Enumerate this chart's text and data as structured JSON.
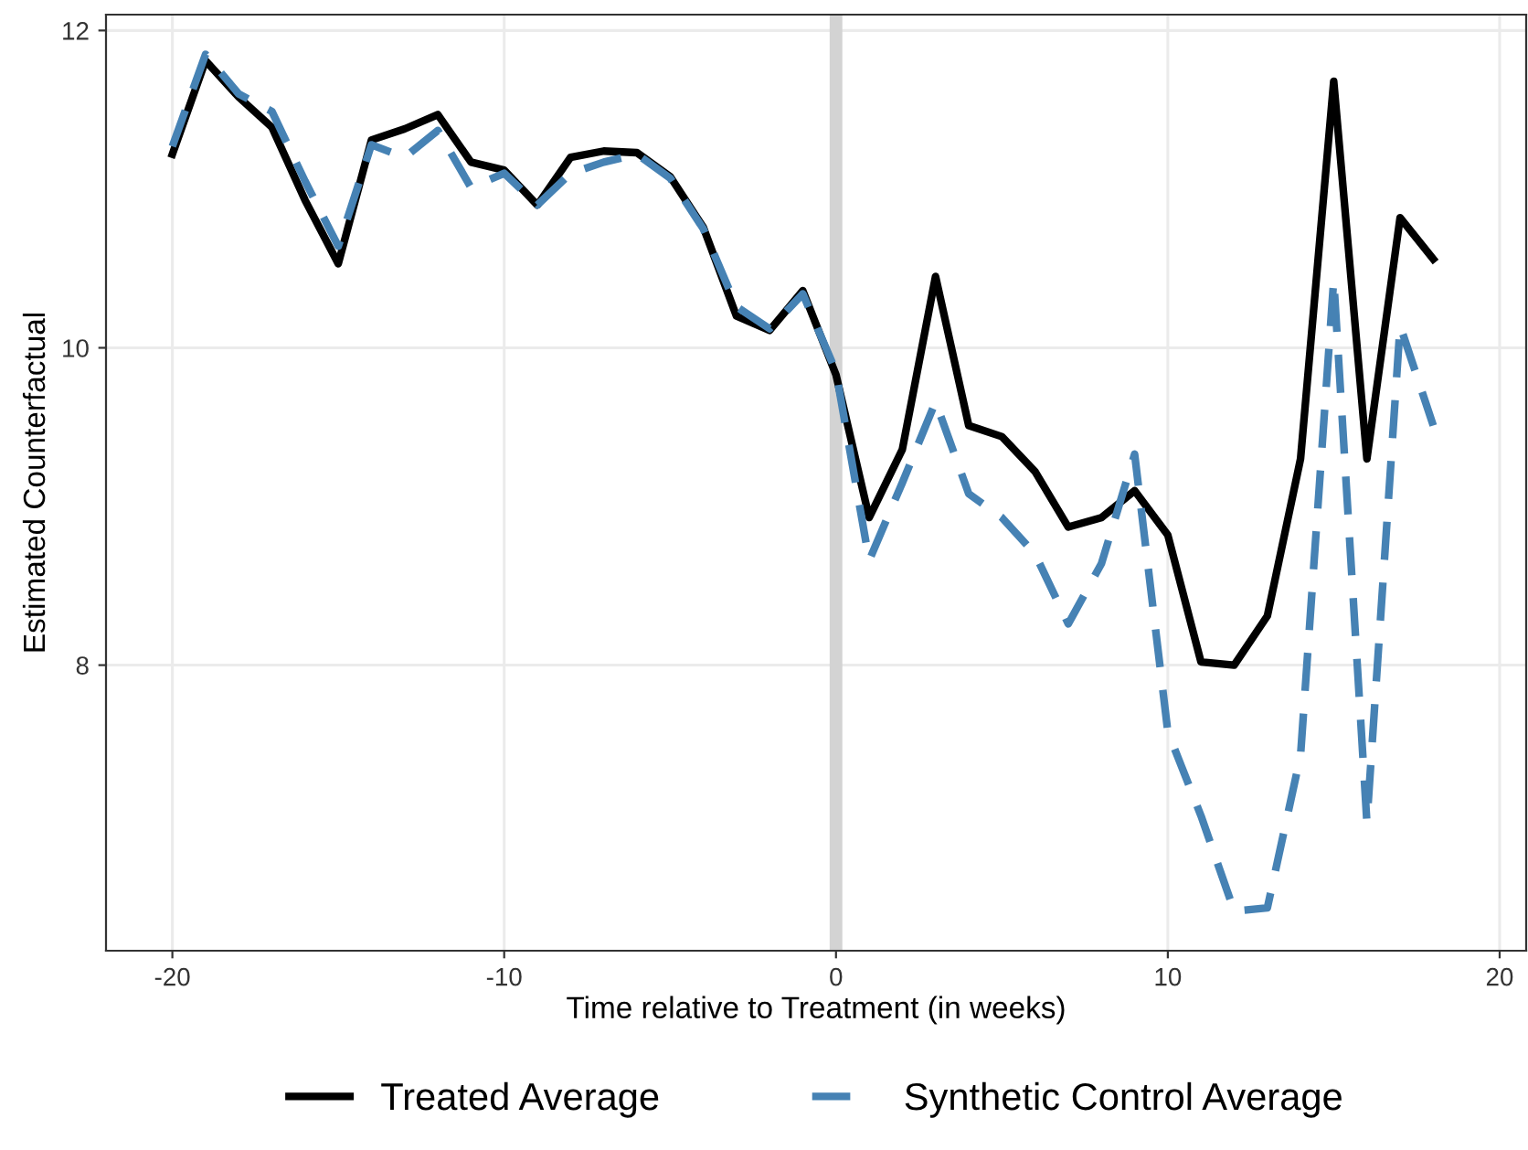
{
  "chart_data": {
    "type": "line",
    "xlabel": "Time relative to Treatment (in weeks)",
    "ylabel": "Estimated Counterfactual",
    "x": [
      -20,
      -19,
      -18,
      -17,
      -16,
      -15,
      -14,
      -13,
      -12,
      -11,
      -10,
      -9,
      -8,
      -7,
      -6,
      -5,
      -4,
      -3,
      -2,
      -1,
      0,
      1,
      2,
      3,
      4,
      5,
      6,
      7,
      8,
      9,
      10,
      11,
      12,
      13,
      14,
      15,
      16,
      17,
      18
    ],
    "series": [
      {
        "name": "Treated Average",
        "color": "#000000",
        "line_style": "solid",
        "values": [
          11.22,
          11.81,
          11.58,
          11.39,
          10.93,
          10.53,
          11.31,
          11.38,
          11.47,
          11.17,
          11.12,
          10.9,
          11.2,
          11.24,
          11.23,
          11.08,
          10.76,
          10.2,
          10.11,
          10.36,
          9.83,
          8.93,
          9.36,
          10.45,
          9.51,
          9.44,
          9.22,
          8.87,
          8.93,
          9.1,
          8.82,
          8.02,
          8.0,
          8.31,
          9.3,
          11.68,
          9.3,
          10.82,
          10.56
        ]
      },
      {
        "name": "Synthetic Control Average",
        "color": "#4682b4",
        "line_style": "dashed",
        "values": [
          11.27,
          11.85,
          11.6,
          11.49,
          11.05,
          10.64,
          11.28,
          11.2,
          11.37,
          11.01,
          11.1,
          10.9,
          11.1,
          11.17,
          11.22,
          11.07,
          10.75,
          10.26,
          10.12,
          10.34,
          9.85,
          8.66,
          9.15,
          9.66,
          9.08,
          8.93,
          8.7,
          8.26,
          8.64,
          9.33,
          7.58,
          7.05,
          6.45,
          6.47,
          7.43,
          10.43,
          7.01,
          10.14,
          9.51
        ]
      }
    ],
    "xlim": [
      -22,
      20.8
    ],
    "ylim": [
      6.2,
      12.1
    ],
    "xticks": [
      -20,
      -10,
      0,
      10,
      20
    ],
    "yticks": [
      8,
      10,
      12
    ],
    "ref_lines": [
      {
        "axis": "x",
        "value": 0,
        "color": "#d3d3d3"
      }
    ],
    "grid": true,
    "legend": "bottom",
    "marker": "none"
  }
}
